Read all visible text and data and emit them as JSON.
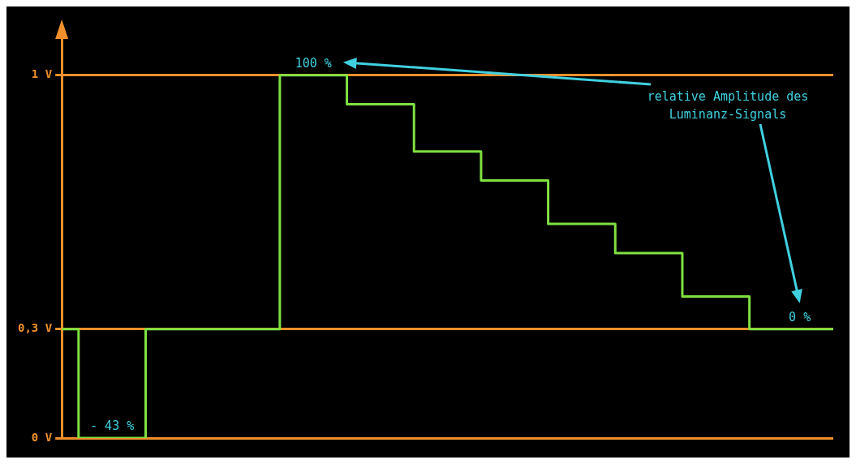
{
  "chart_data": {
    "type": "step",
    "categories": [
      null,
      null,
      null,
      null,
      null,
      null,
      null,
      null,
      null,
      null,
      null,
      null,
      null,
      null,
      null,
      null,
      null,
      null,
      null,
      null,
      null,
      null,
      null,
      null
    ],
    "values": [
      0.3,
      0,
      0,
      0.3,
      0.3,
      0.3,
      0.3,
      1,
      1,
      0.92,
      0.92,
      0.79,
      0.79,
      0.71,
      0.71,
      0.59,
      0.59,
      0.51,
      0.51,
      0.39,
      0.39,
      0.3,
      0.3,
      0.3
    ],
    "color": "#7fe040",
    "ylim": [
      0,
      1.1
    ],
    "yticks": [
      {
        "value": 0,
        "label": "0 V"
      },
      {
        "value": 0.3,
        "label": "0,3 V"
      },
      {
        "value": 1,
        "label": "1 V"
      }
    ],
    "grid": "y",
    "tick_labels": "y",
    "annotations": [
      {
        "text": "100 %",
        "y": 1
      },
      {
        "text": "- 43 %",
        "y": 0
      },
      {
        "text": "0 %",
        "y": 0.3
      },
      "relative Amplitude des Luminanz-Signals"
    ]
  }
}
